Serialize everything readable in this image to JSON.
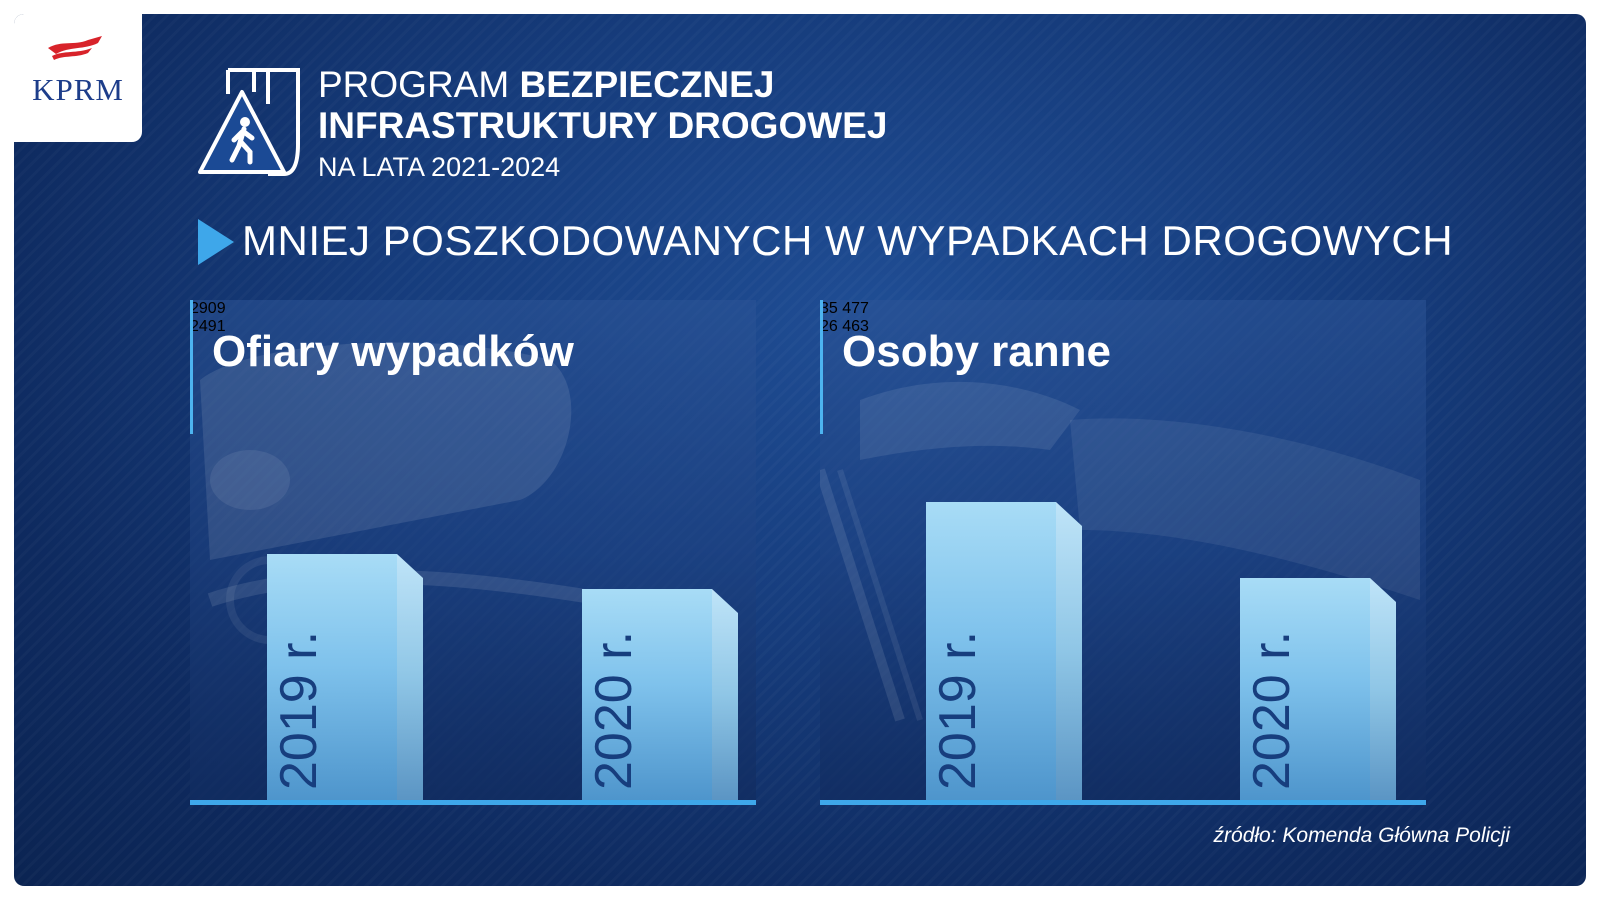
{
  "logo": {
    "text": "KPRM"
  },
  "program": {
    "title_light": "PROGRAM ",
    "title_bold_1": "BEZPIECZNEJ",
    "title_bold_2": "INFRASTRUKTURY DROGOWEJ",
    "years": "NA LATA 2021-2024"
  },
  "subtitle": "MNIEJ POSZKODOWANYCH W WYPADKACH DROGOWYCH",
  "source": "źródło: Komenda Główna Policji",
  "colors": {
    "background": "#163c7c",
    "bar_light": "#a8dcf6",
    "bar_dark": "#4e95cc",
    "accent": "#3ea7ea",
    "year_text": "#173e7e"
  },
  "chart_data": [
    {
      "type": "bar",
      "title": "Ofiary wypadków",
      "categories": [
        "2019 r.",
        "2020 r."
      ],
      "values": [
        2909,
        2491
      ],
      "value_labels": [
        "2909",
        "2491"
      ]
    },
    {
      "type": "bar",
      "title": "Osoby ranne",
      "categories": [
        "2019 r.",
        "2020 r."
      ],
      "values": [
        35477,
        26463
      ],
      "value_labels": [
        "35 477",
        "26 463"
      ]
    }
  ]
}
